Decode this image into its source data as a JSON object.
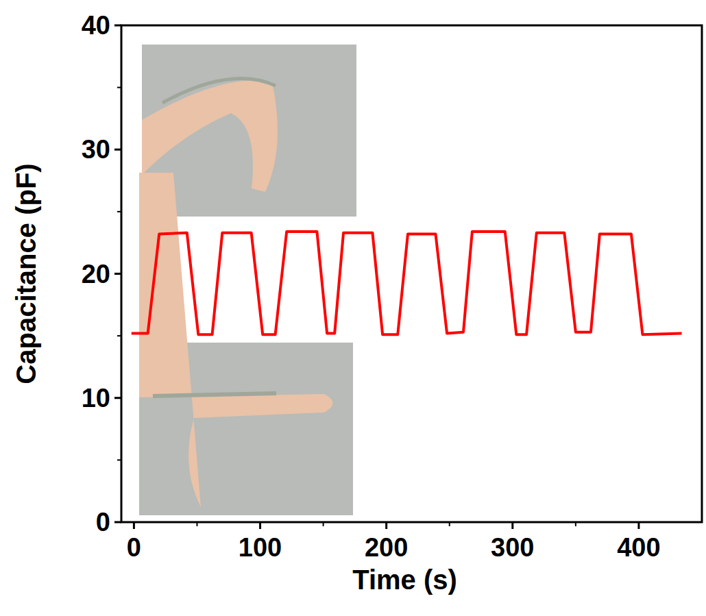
{
  "chart_data": {
    "type": "line",
    "x_label": "Time (s)",
    "y_label": "Capacitance (pF)",
    "xlim": [
      -10,
      450
    ],
    "xticks": [
      0,
      100,
      200,
      300,
      400
    ],
    "ylim": [
      0,
      40
    ],
    "yticks": [
      0,
      10,
      20,
      30,
      40
    ],
    "grid": false,
    "series": [
      {
        "color": "#ff0000",
        "x": [
          -2,
          11,
          20,
          42,
          51,
          62,
          70,
          93,
          102,
          112,
          121,
          145,
          153,
          159,
          166,
          189,
          197,
          209,
          217,
          239,
          248,
          261,
          268,
          294,
          303,
          311,
          319,
          341,
          350,
          362,
          369,
          394,
          403,
          434
        ],
        "values": [
          15.2,
          15.2,
          23.2,
          23.3,
          15.1,
          15.1,
          23.3,
          23.3,
          15.1,
          15.1,
          23.4,
          23.4,
          15.2,
          15.2,
          23.3,
          23.3,
          15.1,
          15.1,
          23.2,
          23.2,
          15.2,
          15.3,
          23.4,
          23.4,
          15.1,
          15.1,
          23.3,
          23.3,
          15.3,
          15.3,
          23.2,
          23.2,
          15.1,
          15.2
        ]
      }
    ]
  }
}
